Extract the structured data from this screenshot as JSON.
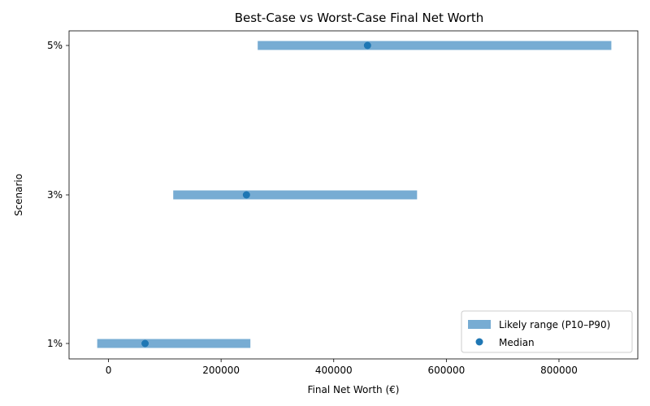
{
  "chart_data": {
    "type": "range",
    "title": "Best-Case vs Worst-Case Final Net Worth",
    "xlabel": "Final Net Worth (€)",
    "ylabel": "Scenario",
    "xlim": [
      -70000,
      940000
    ],
    "x_ticks": [
      0,
      200000,
      400000,
      600000,
      800000
    ],
    "x_tick_labels": [
      "0",
      "200000",
      "400000",
      "600000",
      "800000"
    ],
    "categories": [
      "1%",
      "3%",
      "5%"
    ],
    "series": [
      {
        "name": "Likely range (P10–P90)",
        "kind": "range",
        "low": [
          -20000,
          115000,
          265000
        ],
        "high": [
          252000,
          548000,
          893000
        ]
      },
      {
        "name": "Median",
        "kind": "point",
        "values": [
          65000,
          245000,
          460000
        ]
      }
    ],
    "grid": false,
    "legend_position": "lower-right",
    "colors": {
      "range": "#77acd3",
      "median": "#1f77b4"
    }
  }
}
